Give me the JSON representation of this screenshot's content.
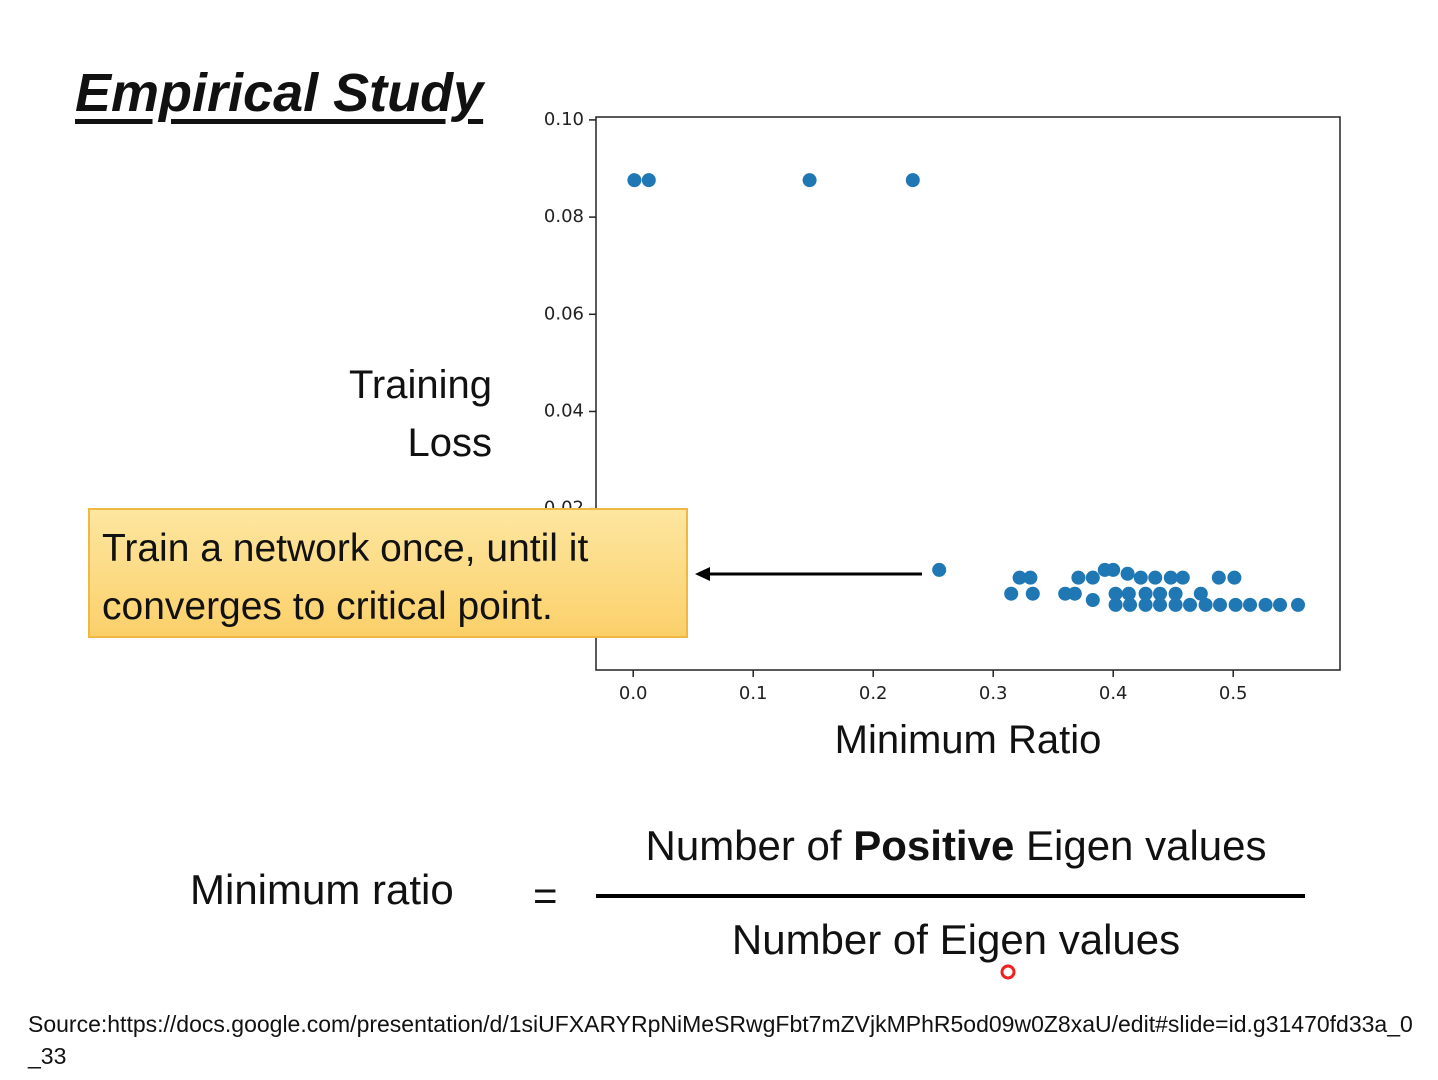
{
  "slide_title": "Empirical Study",
  "chart_data": {
    "type": "scatter",
    "ylabel": "Training Loss",
    "xlabel": "Minimum Ratio",
    "color": "#1f77b4",
    "x": [
      0.001,
      0.013,
      0.147,
      0.233,
      0.255,
      0.322,
      0.331,
      0.315,
      0.333,
      0.371,
      0.383,
      0.393,
      0.4,
      0.412,
      0.423,
      0.435,
      0.448,
      0.458,
      0.488,
      0.501,
      0.36,
      0.368,
      0.383,
      0.402,
      0.413,
      0.427,
      0.439,
      0.452,
      0.473,
      0.402,
      0.414,
      0.427,
      0.439,
      0.452,
      0.464,
      0.477,
      0.489,
      0.502,
      0.514,
      0.527,
      0.539,
      0.554
    ],
    "values": [
      0.0876,
      0.0876,
      0.0876,
      0.0876,
      0.0074,
      0.0058,
      0.0058,
      0.0025,
      0.0025,
      0.0058,
      0.0058,
      0.0074,
      0.0074,
      0.0066,
      0.0058,
      0.0058,
      0.0058,
      0.0058,
      0.0058,
      0.0058,
      0.0025,
      0.0025,
      0.0012,
      0.0025,
      0.0025,
      0.0025,
      0.0025,
      0.0025,
      0.0025,
      0.0002,
      0.0002,
      0.0002,
      0.0002,
      0.0002,
      0.0002,
      0.0002,
      0.0002,
      0.0002,
      0.0002,
      0.0002,
      0.0002,
      0.0002
    ],
    "xlim": [
      -0.031,
      0.589
    ],
    "ylim": [
      -0.0132,
      0.1006
    ],
    "xticks": [
      {
        "value": 0,
        "label": "0.0"
      },
      {
        "value": 0.1,
        "label": "0.1"
      },
      {
        "value": 0.2,
        "label": "0.2"
      },
      {
        "value": 0.3,
        "label": "0.3"
      },
      {
        "value": 0.4,
        "label": "0.4"
      },
      {
        "value": 0.5,
        "label": "0.5"
      }
    ],
    "yticks": [
      {
        "value": 0.02,
        "label": "0.02"
      },
      {
        "value": 0.04,
        "label": "0.04"
      },
      {
        "value": 0.06,
        "label": "0.06"
      },
      {
        "value": 0.08,
        "label": "0.08"
      },
      {
        "value": 0.1,
        "label": "0.10"
      }
    ]
  },
  "callout": "Train a network once, until it converges to critical point.",
  "formula": {
    "lhs": "Minimum ratio",
    "equals": "=",
    "numerator": {
      "before": "Number of ",
      "bold": "Positive",
      "after": " Eigen values"
    },
    "denominator": "Number of Eigen values"
  },
  "source": "Source:https://docs.google.com/presentation/d/1siUFXARYRpNiMeSRwgFbt7mZVjkMPhR5od09w0Z8xaU/edit#slide=id.g31470fd33a_0_33"
}
